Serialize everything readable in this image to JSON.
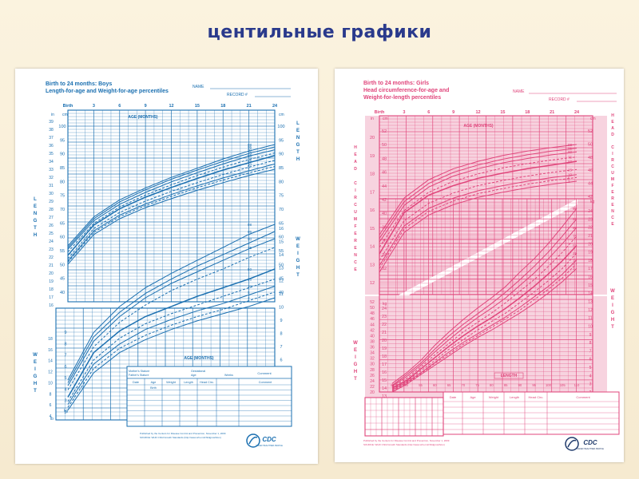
{
  "slide": {
    "title": "центильные графики"
  },
  "colors": {
    "boys": "#1a6fb0",
    "girls": "#e0457b",
    "title": "#2a3a8c"
  },
  "chart_data": [
    {
      "type": "line",
      "chart_id": "boys",
      "title": "Birth to 24 months: Boys",
      "subtitle": "Length-for-age and Weight-for-age percentiles",
      "name_label": "NAME",
      "record_label": "RECORD #",
      "age_label": "AGE (MONTHS)",
      "left_axis_word": "LENGTH",
      "right_axis_word_top": "LENGTH",
      "right_axis_word_bottom": "WEIGHT",
      "left_axis_word_bottom": "WEIGHT",
      "x_ticks": [
        "Birth",
        "3",
        "6",
        "9",
        "12",
        "15",
        "18",
        "21",
        "24"
      ],
      "x": [
        0,
        3,
        6,
        9,
        12,
        15,
        18,
        21,
        24
      ],
      "length_axis": {
        "unit_in": "in",
        "unit_cm": "cm",
        "ylim_cm": [
          40,
          100
        ],
        "ticks_cm": [
          "100",
          "95",
          "90",
          "85",
          "80",
          "75",
          "70",
          "65",
          "60",
          "55",
          "50",
          "45",
          "40"
        ],
        "ticks_in": [
          "39",
          "38",
          "37",
          "36",
          "35",
          "34",
          "33",
          "32",
          "31",
          "30",
          "29",
          "28",
          "27",
          "26",
          "25",
          "24",
          "23",
          "22",
          "21",
          "20",
          "19",
          "18",
          "17",
          "16"
        ]
      },
      "weight_axis": {
        "unit_kg": "kg",
        "unit_lb": "lb",
        "ylim_kg": [
          2,
          16
        ],
        "ticks_kg": [
          "16",
          "15",
          "14",
          "13",
          "12",
          "11",
          "10",
          "9",
          "8",
          "7",
          "6",
          "5",
          "4",
          "3",
          "2"
        ],
        "ticks_lb": [
          "34",
          "32",
          "30",
          "28",
          "26",
          "24",
          "22",
          "20",
          "18",
          "16",
          "14",
          "12",
          "10",
          "8",
          "6",
          "4"
        ]
      },
      "length_series": [
        {
          "name": "98",
          "values": [
            53.5,
            64.5,
            71.0,
            75.5,
            79.5,
            83.0,
            86.5,
            89.5,
            92.0
          ]
        },
        {
          "name": "95",
          "values": [
            52.8,
            63.8,
            70.2,
            74.8,
            78.8,
            82.3,
            85.6,
            88.6,
            91.1
          ]
        },
        {
          "name": "90",
          "values": [
            52.2,
            63.0,
            69.3,
            73.8,
            77.8,
            81.3,
            84.6,
            87.6,
            90.0
          ]
        },
        {
          "name": "75",
          "values": [
            51.2,
            62.0,
            68.3,
            72.8,
            76.7,
            80.2,
            83.4,
            86.3,
            88.8
          ]
        },
        {
          "name": "50",
          "values": [
            49.9,
            61.4,
            67.6,
            72.0,
            75.7,
            79.1,
            82.3,
            85.1,
            87.8
          ]
        },
        {
          "name": "25",
          "values": [
            48.6,
            60.1,
            66.2,
            70.5,
            74.2,
            77.5,
            80.6,
            83.4,
            86.0
          ]
        },
        {
          "name": "10",
          "values": [
            47.8,
            59.2,
            65.2,
            69.4,
            73.0,
            76.3,
            79.3,
            82.0,
            84.6
          ]
        },
        {
          "name": "5",
          "values": [
            47.3,
            58.6,
            64.6,
            68.8,
            72.3,
            75.6,
            78.5,
            81.2,
            83.7
          ]
        },
        {
          "name": "2",
          "values": [
            46.5,
            57.8,
            63.8,
            68.0,
            71.4,
            74.6,
            77.5,
            80.2,
            82.6
          ]
        }
      ],
      "weight_series": [
        {
          "name": "98",
          "values": [
            4.5,
            7.8,
            9.6,
            10.9,
            11.9,
            12.8,
            13.7,
            14.6,
            15.3
          ]
        },
        {
          "name": "95",
          "values": [
            4.3,
            7.5,
            9.2,
            10.5,
            11.5,
            12.4,
            13.2,
            14.0,
            14.8
          ]
        },
        {
          "name": "90",
          "values": [
            4.1,
            7.2,
            8.9,
            10.2,
            11.2,
            12.0,
            12.8,
            13.6,
            14.3
          ]
        },
        {
          "name": "75",
          "values": [
            3.8,
            6.8,
            8.5,
            9.7,
            10.7,
            11.5,
            12.2,
            13.0,
            13.7
          ]
        },
        {
          "name": "50",
          "values": [
            3.3,
            6.4,
            7.9,
            8.9,
            9.6,
            10.3,
            10.9,
            11.5,
            12.2
          ]
        },
        {
          "name": "25",
          "values": [
            3.0,
            5.9,
            7.4,
            8.4,
            9.1,
            9.7,
            10.3,
            10.9,
            11.5
          ]
        },
        {
          "name": "10",
          "values": [
            2.8,
            5.6,
            7.0,
            8.0,
            8.7,
            9.3,
            9.8,
            10.4,
            11.0
          ]
        },
        {
          "name": "5",
          "values": [
            2.6,
            5.3,
            6.7,
            7.6,
            8.3,
            8.9,
            9.4,
            10.0,
            10.6
          ]
        },
        {
          "name": "2",
          "values": [
            2.4,
            5.0,
            6.4,
            7.3,
            8.0,
            8.6,
            9.1,
            9.6,
            10.2
          ]
        }
      ],
      "table": {
        "headers_top": [
          "Mother's Stature",
          "Gestational",
          "Comment"
        ],
        "headers_top_2": [
          "Father's Stature",
          "Age:",
          "Weeks"
        ],
        "columns": [
          "Date",
          "Age",
          "Weight",
          "Length",
          "Head Circ.",
          "Comment"
        ],
        "first_row_age": "Birth"
      },
      "footer": "Published by the Centers for Disease Control and Prevention, November 1, 2009",
      "source": "SOURCE: WHO Child Growth Standards (http://www.who.int/childgrowth/en)",
      "logo_text": "CDC",
      "logo_subtext": "SAFER·HEALTHIER·PEOPLE"
    },
    {
      "type": "line",
      "chart_id": "girls",
      "title": "Birth to 24 months: Girls",
      "subtitle": "Head circumference-for-age and",
      "subtitle_2": "Weight-for-length percentiles",
      "name_label": "NAME",
      "record_label": "RECORD #",
      "age_label": "AGE (MONTHS)",
      "length_label": "LENGTH",
      "left_axis_word_top": "HEAD CIRCUMFERENCE",
      "left_axis_word_bottom": "WEIGHT",
      "right_axis_word_top": "HEAD CIRCUMFERENCE",
      "right_axis_word_bottom": "WEIGHT",
      "x_ticks": [
        "Birth",
        "3",
        "6",
        "9",
        "12",
        "15",
        "18",
        "21",
        "24"
      ],
      "x": [
        0,
        3,
        6,
        9,
        12,
        15,
        18,
        21,
        24
      ],
      "head_axis": {
        "unit_in": "in",
        "unit_cm": "cm",
        "ylim_cm": [
          30,
          52
        ],
        "ticks_cm": [
          "52",
          "50",
          "48",
          "46",
          "44",
          "42",
          "40",
          "38",
          "36",
          "34",
          "32"
        ],
        "ticks_in": [
          "20",
          "19",
          "18",
          "17",
          "16",
          "15",
          "14",
          "13",
          "12"
        ]
      },
      "weight_axis": {
        "unit_kg": "kg",
        "unit_lb": "lb",
        "ylim_kg": [
          1,
          24
        ],
        "ticks_kg": [
          "24",
          "23",
          "22",
          "21",
          "20",
          "19",
          "18",
          "17",
          "16",
          "15",
          "14",
          "13",
          "12",
          "11",
          "10",
          "9",
          "8",
          "7",
          "6",
          "5",
          "4",
          "3",
          "2"
        ],
        "ticks_lb": [
          "52",
          "50",
          "48",
          "46",
          "44",
          "42",
          "40",
          "38",
          "36",
          "34",
          "32",
          "30",
          "28",
          "26",
          "24",
          "22",
          "20",
          "18",
          "16",
          "14",
          "12",
          "10",
          "8",
          "6",
          "4"
        ]
      },
      "length_ticks_cm": [
        "45",
        "50",
        "55",
        "60",
        "65",
        "70",
        "75",
        "80",
        "85",
        "90",
        "95",
        "100",
        "105",
        "110"
      ],
      "head_series": [
        {
          "name": "98",
          "values": [
            36.5,
            41.5,
            44.0,
            45.5,
            46.5,
            47.3,
            47.9,
            48.4,
            48.8
          ]
        },
        {
          "name": "95",
          "values": [
            36.0,
            41.0,
            43.5,
            45.0,
            46.0,
            46.8,
            47.4,
            47.9,
            48.3
          ]
        },
        {
          "name": "90",
          "values": [
            35.5,
            40.5,
            43.0,
            44.5,
            45.5,
            46.3,
            46.9,
            47.4,
            47.8
          ]
        },
        {
          "name": "75",
          "values": [
            34.8,
            39.8,
            42.3,
            43.8,
            44.8,
            45.6,
            46.2,
            46.7,
            47.1
          ]
        },
        {
          "name": "50",
          "values": [
            33.9,
            39.5,
            41.9,
            43.2,
            44.2,
            44.9,
            45.5,
            46.0,
            46.5
          ]
        },
        {
          "name": "25",
          "values": [
            33.0,
            38.4,
            40.8,
            42.2,
            43.2,
            43.9,
            44.5,
            45.0,
            45.4
          ]
        },
        {
          "name": "10",
          "values": [
            32.3,
            37.7,
            40.1,
            41.5,
            42.5,
            43.2,
            43.8,
            44.3,
            44.7
          ]
        },
        {
          "name": "5",
          "values": [
            31.9,
            37.3,
            39.7,
            41.1,
            42.1,
            42.8,
            43.4,
            43.9,
            44.3
          ]
        },
        {
          "name": "2",
          "values": [
            31.4,
            36.8,
            39.2,
            40.6,
            41.6,
            42.3,
            42.9,
            43.4,
            43.8
          ]
        }
      ],
      "wfl_x": [
        45,
        50,
        55,
        60,
        65,
        70,
        75,
        80,
        85,
        90,
        95,
        100,
        105,
        110
      ],
      "wfl_series": [
        {
          "name": "98",
          "values": [
            2.9,
            4.0,
            5.3,
            6.9,
            8.3,
            9.6,
            10.8,
            11.9,
            13.1,
            14.6,
            16.0,
            17.6,
            19.4,
            21.3
          ]
        },
        {
          "name": "95",
          "values": [
            2.7,
            3.8,
            5.0,
            6.5,
            7.9,
            9.1,
            10.2,
            11.3,
            12.5,
            13.8,
            15.2,
            16.7,
            18.4,
            20.2
          ]
        },
        {
          "name": "90",
          "values": [
            2.6,
            3.6,
            4.8,
            6.2,
            7.5,
            8.7,
            9.8,
            10.8,
            11.9,
            13.2,
            14.5,
            16.0,
            17.6,
            19.3
          ]
        },
        {
          "name": "75",
          "values": [
            2.5,
            3.4,
            4.6,
            5.9,
            7.1,
            8.3,
            9.3,
            10.3,
            11.4,
            12.6,
            13.8,
            15.2,
            16.7,
            18.4
          ]
        },
        {
          "name": "50",
          "values": [
            2.4,
            3.2,
            4.4,
            5.6,
            6.8,
            7.9,
            8.9,
            9.8,
            10.8,
            11.9,
            13.1,
            14.4,
            15.8,
            17.4
          ]
        },
        {
          "name": "25",
          "values": [
            2.3,
            3.1,
            4.2,
            5.3,
            6.5,
            7.5,
            8.5,
            9.4,
            10.3,
            11.4,
            12.5,
            13.7,
            15.0,
            16.6
          ]
        },
        {
          "name": "10",
          "values": [
            2.2,
            3.0,
            4.0,
            5.1,
            6.2,
            7.2,
            8.1,
            9.0,
            9.9,
            10.9,
            12.0,
            13.1,
            14.4,
            15.9
          ]
        },
        {
          "name": "5",
          "values": [
            2.1,
            2.9,
            3.9,
            5.0,
            6.0,
            7.0,
            7.9,
            8.8,
            9.7,
            10.6,
            11.7,
            12.8,
            14.0,
            15.5
          ]
        },
        {
          "name": "2",
          "values": [
            2.0,
            2.8,
            3.8,
            4.8,
            5.8,
            6.8,
            7.7,
            8.5,
            9.4,
            10.3,
            11.3,
            12.4,
            13.6,
            15.0
          ]
        }
      ],
      "table": {
        "columns": [
          "Date",
          "Age",
          "Weight",
          "Length",
          "Head Circ.",
          "Comment"
        ]
      },
      "footer": "Published by the Centers for Disease Control and Prevention, November 1, 2009",
      "source": "SOURCE: WHO Child Growth Standards (http://www.who.int/childgrowth/en)",
      "logo_text": "CDC",
      "logo_subtext": "SAFER·HEALTHIER·PEOPLE"
    }
  ]
}
